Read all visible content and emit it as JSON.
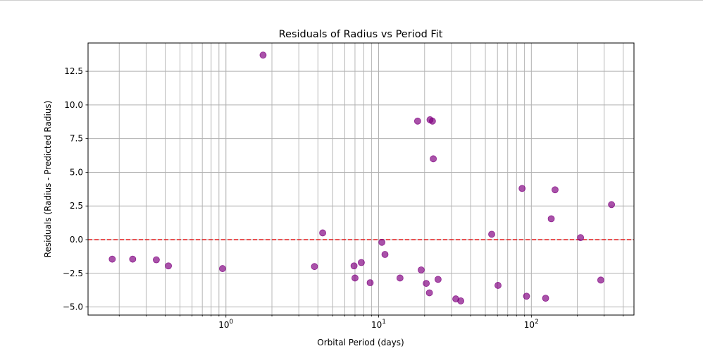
{
  "chart_data": {
    "type": "scatter",
    "title": "Residuals of Radius vs Period Fit",
    "xlabel": "Orbital Period (days)",
    "ylabel": "Residuals (Radius - Predicted Radius)",
    "xscale": "log",
    "xlim": [
      0.125,
      470
    ],
    "ylim": [
      -5.6,
      14.6
    ],
    "grid": true,
    "x_ticks": [
      {
        "value": 1,
        "base": "10",
        "exp": "0"
      },
      {
        "value": 10,
        "base": "10",
        "exp": "1"
      },
      {
        "value": 100,
        "base": "10",
        "exp": "2"
      }
    ],
    "y_ticks": [
      {
        "value": -5.0,
        "label": "−5.0"
      },
      {
        "value": -2.5,
        "label": "−2.5"
      },
      {
        "value": 0.0,
        "label": "0.0"
      },
      {
        "value": 2.5,
        "label": "2.5"
      },
      {
        "value": 5.0,
        "label": "5.0"
      },
      {
        "value": 7.5,
        "label": "7.5"
      },
      {
        "value": 10.0,
        "label": "10.0"
      },
      {
        "value": 12.5,
        "label": "12.5"
      }
    ],
    "reference_line": {
      "y": 0,
      "color": "#e41a1c",
      "style": "dashed"
    },
    "marker_color": "#800080",
    "points": [
      {
        "x": 0.18,
        "y": -1.45
      },
      {
        "x": 0.245,
        "y": -1.45
      },
      {
        "x": 0.35,
        "y": -1.5
      },
      {
        "x": 0.42,
        "y": -1.95
      },
      {
        "x": 0.95,
        "y": -2.15
      },
      {
        "x": 1.75,
        "y": 13.7
      },
      {
        "x": 3.8,
        "y": -2.0
      },
      {
        "x": 4.3,
        "y": 0.5
      },
      {
        "x": 6.9,
        "y": -1.95
      },
      {
        "x": 7.0,
        "y": -2.85
      },
      {
        "x": 7.7,
        "y": -1.7
      },
      {
        "x": 8.8,
        "y": -3.2
      },
      {
        "x": 10.5,
        "y": -0.2
      },
      {
        "x": 11.0,
        "y": -1.1
      },
      {
        "x": 13.8,
        "y": -2.85
      },
      {
        "x": 18.0,
        "y": 8.8
      },
      {
        "x": 19.0,
        "y": -2.25
      },
      {
        "x": 20.5,
        "y": -3.25
      },
      {
        "x": 21.5,
        "y": -3.95
      },
      {
        "x": 21.7,
        "y": 8.9
      },
      {
        "x": 22.5,
        "y": 8.8
      },
      {
        "x": 22.8,
        "y": 6.0
      },
      {
        "x": 24.5,
        "y": -2.95
      },
      {
        "x": 32.0,
        "y": -4.4
      },
      {
        "x": 34.5,
        "y": -4.55
      },
      {
        "x": 55.0,
        "y": 0.4
      },
      {
        "x": 60.5,
        "y": -3.4
      },
      {
        "x": 87.0,
        "y": 3.8
      },
      {
        "x": 93.0,
        "y": -4.2
      },
      {
        "x": 124.0,
        "y": -4.35
      },
      {
        "x": 135.0,
        "y": 1.55
      },
      {
        "x": 143.0,
        "y": 3.7
      },
      {
        "x": 210.0,
        "y": 0.15
      },
      {
        "x": 285.0,
        "y": -3.0
      },
      {
        "x": 335.0,
        "y": 2.6
      }
    ]
  }
}
